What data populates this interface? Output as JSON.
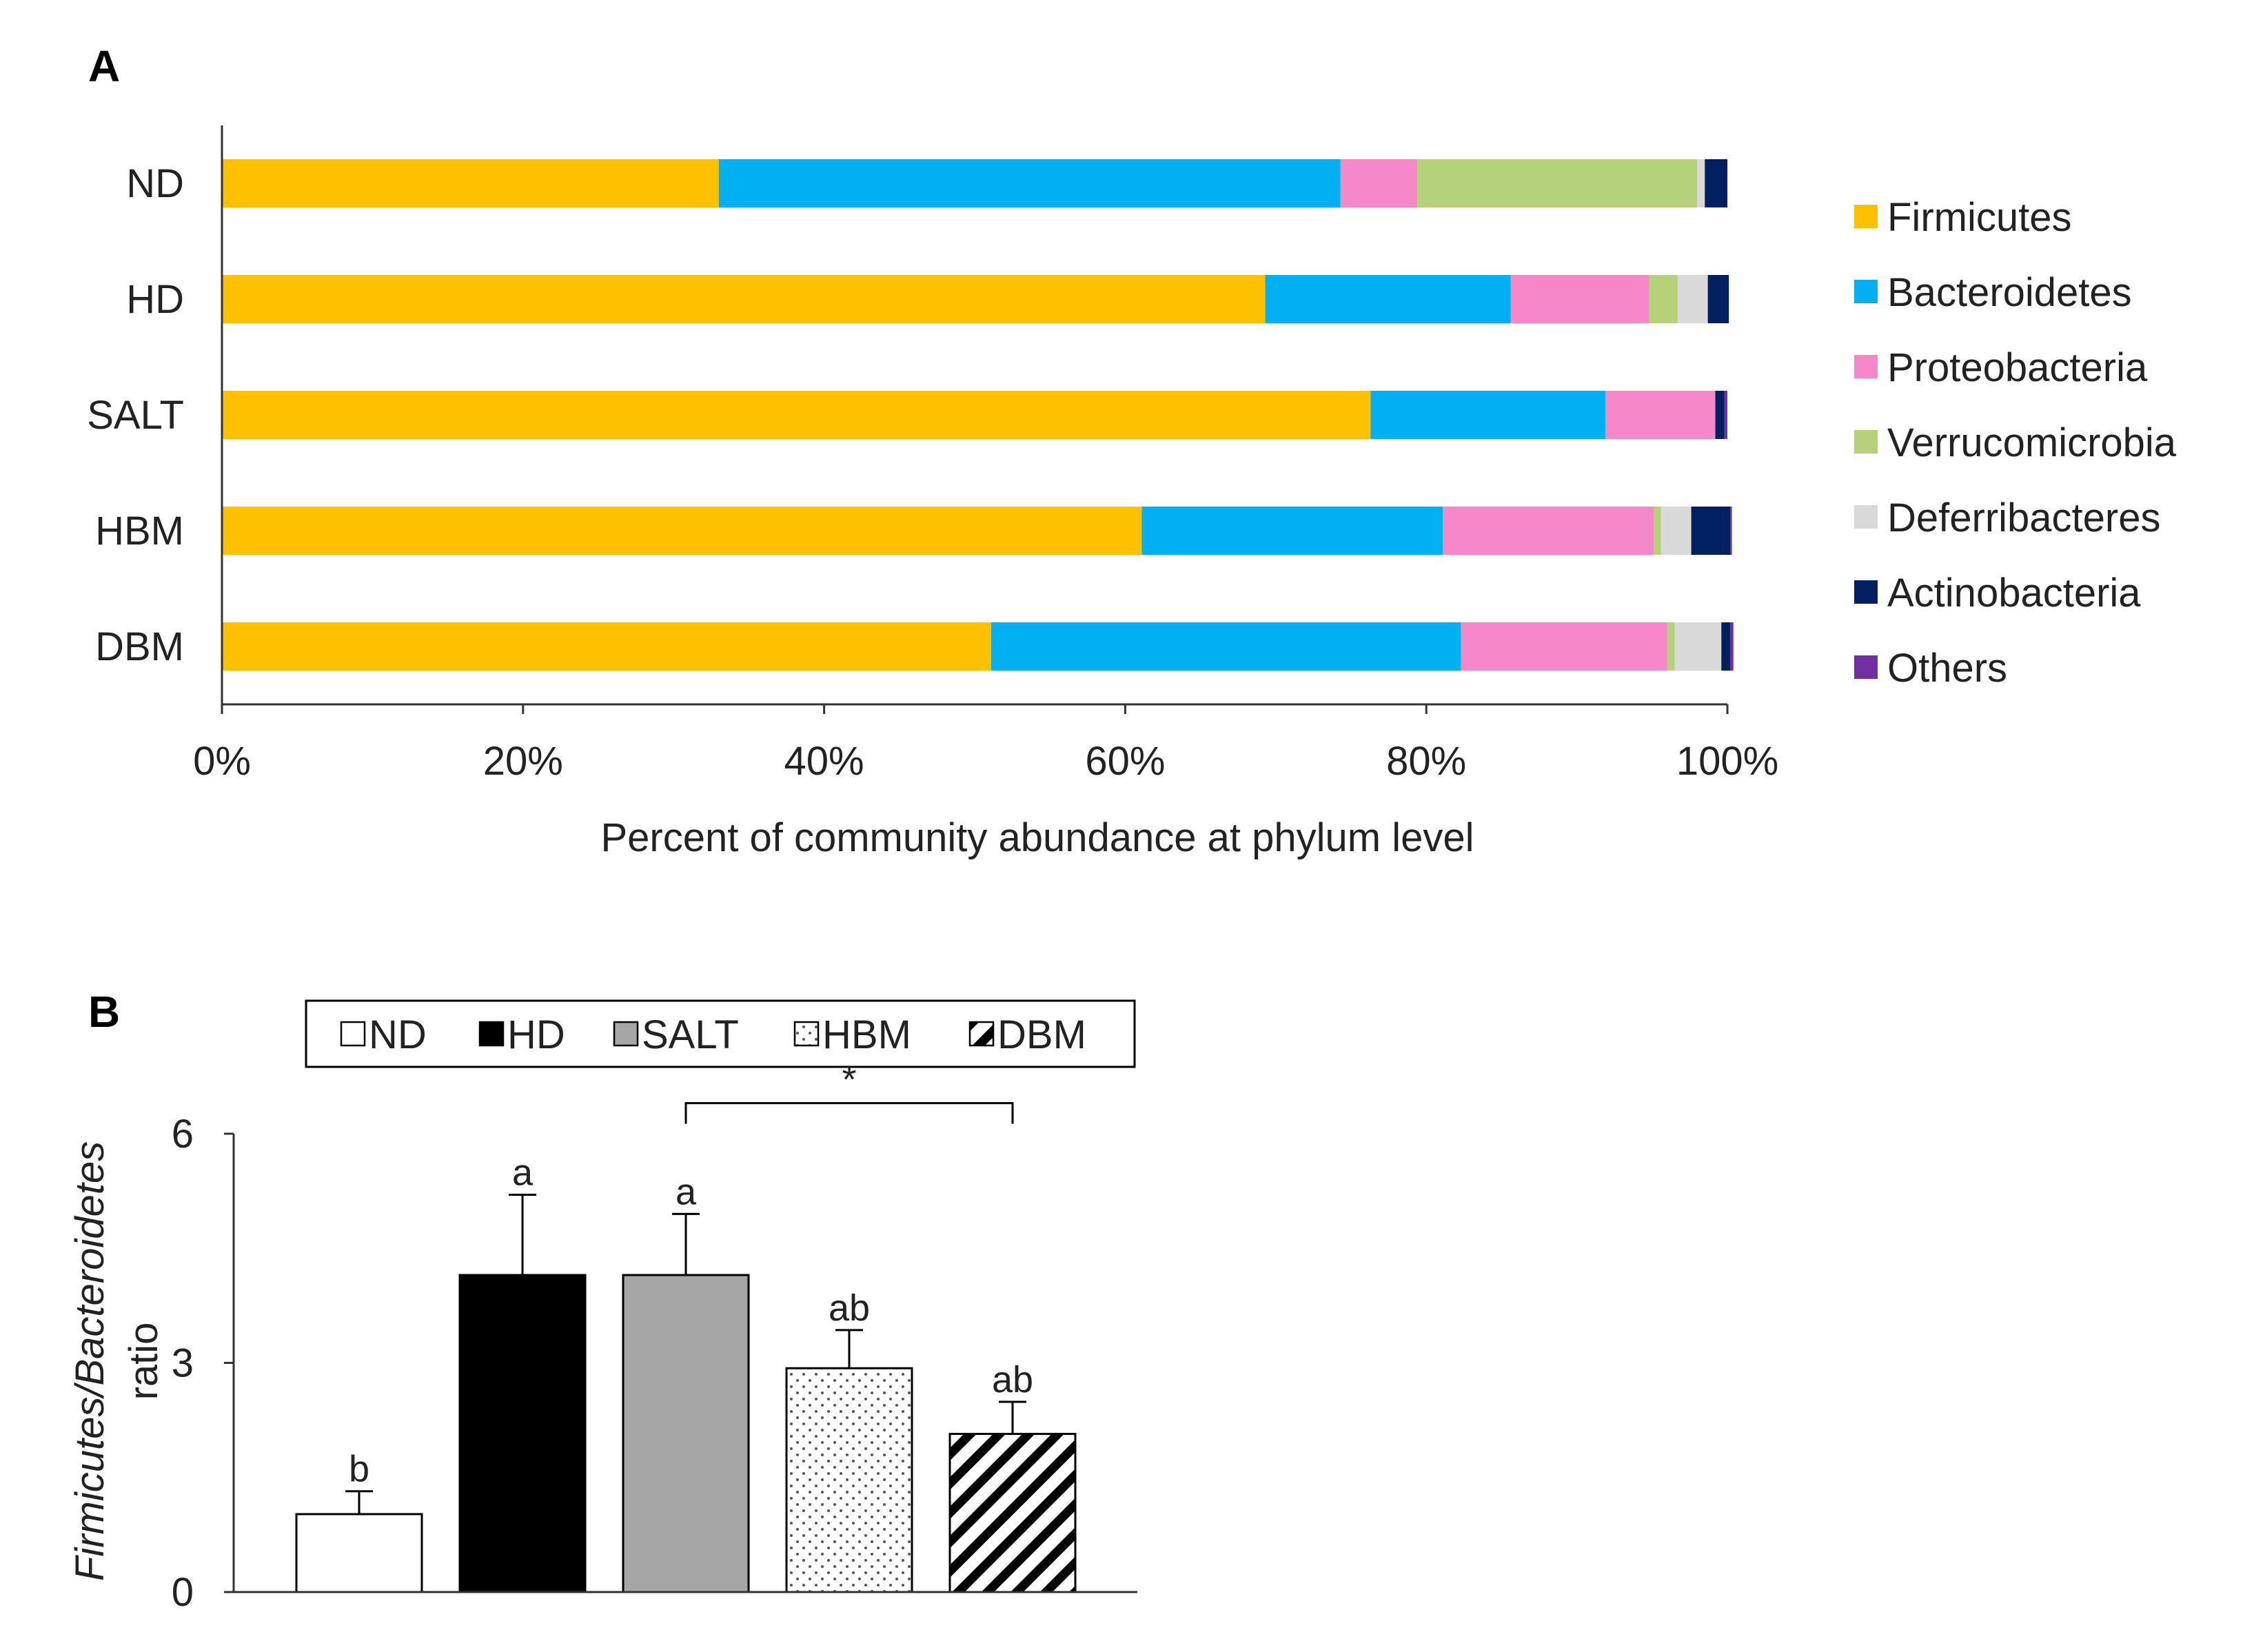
{
  "chart_data": [
    {
      "panel": "A",
      "type": "bar",
      "orientation": "horizontal",
      "stacked": "percent",
      "xlabel": "Percent of community abundance at phylum level",
      "xlim": [
        0,
        100
      ],
      "xticks": [
        "0%",
        "20%",
        "40%",
        "60%",
        "80%",
        "100%"
      ],
      "xtick_values": [
        0,
        20,
        40,
        60,
        80,
        100
      ],
      "categories": [
        "ND",
        "HD",
        "SALT",
        "HBM",
        "DBM"
      ],
      "legend_position": "right",
      "series": [
        {
          "name": "Firmicutes",
          "color": "#FFC000",
          "values": [
            33.0,
            69.3,
            76.3,
            61.1,
            51.1
          ]
        },
        {
          "name": "Bacteroidetes",
          "color": "#00B0F0",
          "values": [
            41.3,
            16.3,
            15.6,
            20.0,
            31.2
          ]
        },
        {
          "name": "Proteobacteria",
          "color": "#F488C8",
          "values": [
            5.1,
            9.2,
            7.3,
            14.0,
            13.7
          ]
        },
        {
          "name": "Verrucomicrobia",
          "color": "#B5D27B",
          "values": [
            18.6,
            1.9,
            0.0,
            0.5,
            0.5
          ]
        },
        {
          "name": "Deferribacteres",
          "color": "#D9D9D9",
          "values": [
            0.5,
            2.0,
            0.0,
            2.0,
            3.1
          ]
        },
        {
          "name": "Actinobacteria",
          "color": "#002060",
          "values": [
            1.5,
            1.4,
            0.6,
            2.6,
            0.6
          ]
        },
        {
          "name": "Others",
          "color": "#7030A0",
          "values": [
            0.0,
            0.0,
            0.2,
            0.1,
            0.2
          ]
        }
      ]
    },
    {
      "panel": "B",
      "type": "bar",
      "ylabel_italic": "Firmicutes/Bacteroidetes",
      "ylabel_plain": "ratio",
      "ylim": [
        0,
        6
      ],
      "yticks": [
        "0",
        "3",
        "6"
      ],
      "ytick_values": [
        0,
        3,
        6
      ],
      "categories": [
        "ND",
        "HD",
        "SALT",
        "HBM",
        "DBM"
      ],
      "values": [
        1.02,
        4.15,
        4.15,
        2.93,
        2.07
      ],
      "errors": [
        0.3,
        1.05,
        0.8,
        0.5,
        0.42
      ],
      "patterns": [
        "white",
        "black",
        "gray",
        "dots",
        "hatch"
      ],
      "letters": [
        "b",
        "a",
        "a",
        "ab",
        "ab"
      ],
      "significance": {
        "from": "SALT",
        "to": "DBM",
        "label": "*"
      },
      "legend_position": "top"
    }
  ],
  "panel_labels": {
    "a": "A",
    "b": "B"
  }
}
